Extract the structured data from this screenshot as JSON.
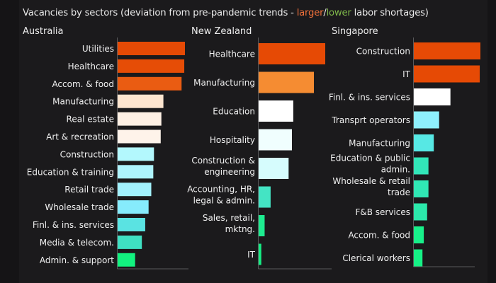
{
  "chart_data": {
    "type": "bar",
    "orientation": "horizontal",
    "title": {
      "prefix": "Vacancies by sectors (deviation from pre-pandemic trends - ",
      "larger": "larger",
      "sep": "/",
      "lower": "lower",
      "suffix": " labor shortages)"
    },
    "xlabel": "",
    "ylabel": "",
    "units": "relative deviation (unlabeled scale, 0–100)",
    "grid": false,
    "panels": [
      {
        "name": "Australia",
        "categories": [
          "Utilities",
          "Healthcare",
          "Accom. &  food",
          "Manufacturing",
          "Real estate",
          "Art & recreation",
          "Construction",
          "Education & training",
          "Retail trade",
          "Wholesale trade",
          "Finl. & ins. services",
          "Media & telecom.",
          "Admin. & support"
        ],
        "values": [
          100,
          99,
          95,
          68,
          65,
          64,
          54,
          53,
          50,
          46,
          41,
          36,
          26
        ],
        "colors": [
          "#e64a05",
          "#e64d06",
          "#ea5c12",
          "#fde5cf",
          "#fef0e4",
          "#fef3ea",
          "#b3f8fd",
          "#aef4fd",
          "#a2f1fd",
          "#86ebfc",
          "#5ae3e2",
          "#3fe0c2",
          "#12f27f"
        ]
      },
      {
        "name": "New Zealand",
        "categories": [
          "Healthcare",
          "Manufacturing",
          "Education",
          "Hospitality",
          "Construction & engineering",
          "Accounting, HR, legal & admin.",
          "Sales, retail, mktng.",
          "IT"
        ],
        "values": [
          100,
          83,
          52,
          50,
          45,
          18,
          9,
          4
        ],
        "colors": [
          "#e64a05",
          "#f58c32",
          "#ffffff",
          "#f0fefe",
          "#d6fcfd",
          "#44e4c4",
          "#1eec90",
          "#15ef84"
        ]
      },
      {
        "name": "Singapore",
        "categories": [
          "Construction",
          "IT",
          "Finl. & ins. services",
          "Transprt operators",
          "Manufacturing",
          "Education & public admin.",
          "Wholesale & retail trade",
          "F&B services",
          "Accom. & food",
          "Clerical workers"
        ],
        "values": [
          100,
          99,
          55,
          38,
          30,
          22,
          22,
          20,
          15,
          13
        ],
        "colors": [
          "#e64a05",
          "#e64a05",
          "#ffffff",
          "#8ef0fd",
          "#57e8e4",
          "#32e6b8",
          "#30e7b4",
          "#2ce9ab",
          "#18f08a",
          "#16f186"
        ]
      }
    ]
  }
}
